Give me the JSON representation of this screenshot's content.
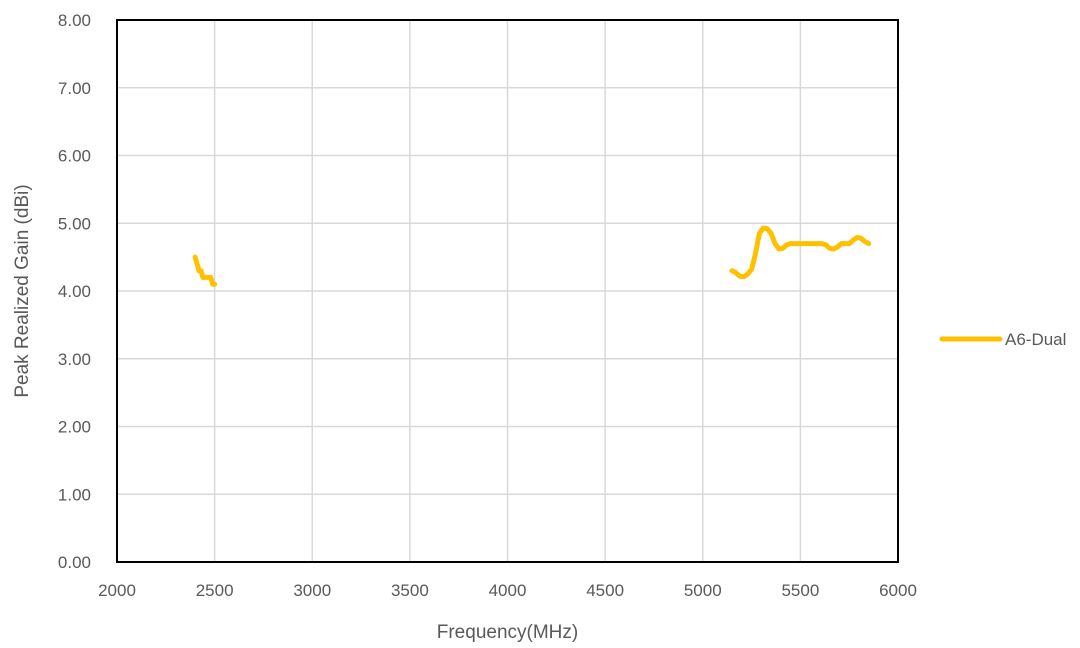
{
  "chart_data": {
    "type": "line",
    "title": "",
    "xlabel": "Frequency(MHz)",
    "ylabel": "Peak Realized Gain (dBi)",
    "xlim": [
      2000,
      6000
    ],
    "ylim": [
      0,
      8
    ],
    "xticks": [
      2000,
      2500,
      3000,
      3500,
      4000,
      4500,
      5000,
      5500,
      6000
    ],
    "xtick_labels": [
      "2000",
      "2500",
      "3000",
      "3500",
      "4000",
      "4500",
      "5000",
      "5500",
      "6000"
    ],
    "yticks": [
      0,
      1,
      2,
      3,
      4,
      5,
      6,
      7,
      8
    ],
    "ytick_labels": [
      "0.00",
      "1.00",
      "2.00",
      "3.00",
      "4.00",
      "5.00",
      "6.00",
      "7.00",
      "8.00"
    ],
    "grid": true,
    "legend": "right",
    "series": [
      {
        "name": "A6-Dual",
        "color": "#FFC000",
        "segments": [
          {
            "x": [
              2400,
              2410,
              2420,
              2430,
              2440,
              2450,
              2460,
              2470,
              2480,
              2490,
              2500
            ],
            "y": [
              4.5,
              4.4,
              4.3,
              4.3,
              4.2,
              4.2,
              4.2,
              4.2,
              4.2,
              4.1,
              4.1
            ]
          },
          {
            "x": [
              5150,
              5170,
              5190,
              5210,
              5230,
              5250,
              5270,
              5290,
              5310,
              5330,
              5350,
              5370,
              5390,
              5410,
              5430,
              5450,
              5470,
              5490,
              5510,
              5530,
              5550,
              5570,
              5590,
              5610,
              5630,
              5650,
              5670,
              5690,
              5710,
              5730,
              5750,
              5770,
              5790,
              5810,
              5830,
              5850
            ],
            "y": [
              4.3,
              4.27,
              4.22,
              4.21,
              4.25,
              4.32,
              4.55,
              4.85,
              4.93,
              4.92,
              4.85,
              4.7,
              4.62,
              4.63,
              4.68,
              4.7,
              4.7,
              4.7,
              4.7,
              4.7,
              4.7,
              4.7,
              4.7,
              4.7,
              4.68,
              4.63,
              4.62,
              4.65,
              4.7,
              4.7,
              4.7,
              4.75,
              4.79,
              4.78,
              4.73,
              4.7
            ]
          }
        ]
      }
    ]
  }
}
